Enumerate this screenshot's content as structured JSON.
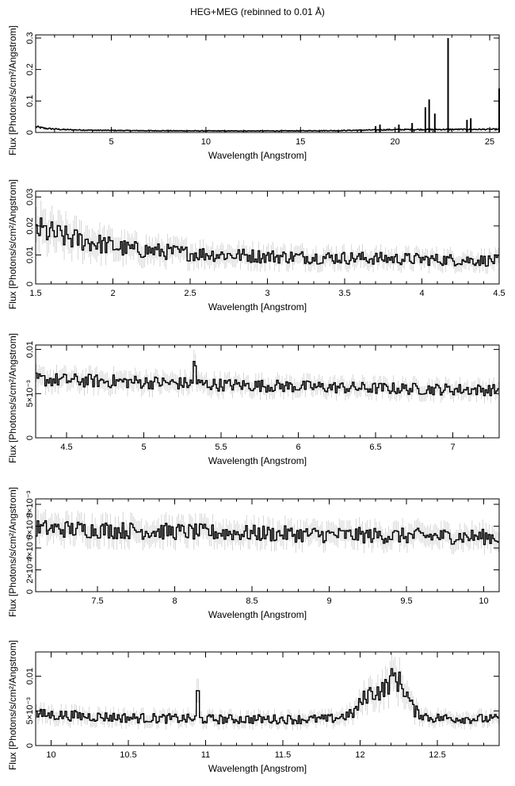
{
  "title": "HEG+MEG (rebinned to 0.01 Å)",
  "chart_data": [
    {
      "type": "line",
      "xlabel": "Wavelength [Angstrom]",
      "ylabel": "Flux [Photons/s/cm²/Angstrom]",
      "xlim": [
        1.0,
        25.5
      ],
      "ylim": [
        0,
        0.31
      ],
      "xticks": [
        {
          "v": 5,
          "label": "5"
        },
        {
          "v": 10,
          "label": "10"
        },
        {
          "v": 15,
          "label": "15"
        },
        {
          "v": 20,
          "label": "20"
        },
        {
          "v": 25,
          "label": "25"
        }
      ],
      "yticks": [
        {
          "v": 0,
          "label": "0"
        },
        {
          "v": 0.1,
          "label": "0.1"
        },
        {
          "v": 0.2,
          "label": "0.2"
        },
        {
          "v": 0.3,
          "label": "0.3"
        }
      ],
      "continuum": [
        [
          1.0,
          0.018
        ],
        [
          1.5,
          0.013
        ],
        [
          2.5,
          0.009
        ],
        [
          4,
          0.007
        ],
        [
          6,
          0.006
        ],
        [
          10,
          0.005
        ],
        [
          14,
          0.005
        ],
        [
          17,
          0.006
        ],
        [
          19,
          0.008
        ],
        [
          20,
          0.009
        ],
        [
          25.5,
          0.01
        ]
      ],
      "lines": [
        [
          17.0,
          0.006
        ],
        [
          18.2,
          0.008
        ],
        [
          18.97,
          0.02
        ],
        [
          19.2,
          0.025
        ],
        [
          20.2,
          0.025
        ],
        [
          20.9,
          0.03
        ],
        [
          21.6,
          0.08
        ],
        [
          21.8,
          0.105
        ],
        [
          22.1,
          0.06
        ],
        [
          22.8,
          0.3
        ],
        [
          23.8,
          0.04
        ],
        [
          24.0,
          0.045
        ],
        [
          25.5,
          0.14
        ]
      ]
    },
    {
      "type": "line",
      "xlabel": "Wavelength [Angstrom]",
      "ylabel": "Flux [Photons/s/cm²/Angstrom]",
      "xlim": [
        1.5,
        4.5
      ],
      "ylim": [
        0,
        0.032
      ],
      "xticks": [
        {
          "v": 1.5,
          "label": "1.5"
        },
        {
          "v": 2,
          "label": "2"
        },
        {
          "v": 2.5,
          "label": "2.5"
        },
        {
          "v": 3,
          "label": "3"
        },
        {
          "v": 3.5,
          "label": "3.5"
        },
        {
          "v": 4,
          "label": "4"
        },
        {
          "v": 4.5,
          "label": "4.5"
        }
      ],
      "yticks": [
        {
          "v": 0,
          "label": "0"
        },
        {
          "v": 0.01,
          "label": "0.01"
        },
        {
          "v": 0.02,
          "label": "0.02"
        },
        {
          "v": 0.03,
          "label": "0.03"
        }
      ],
      "profile": [
        [
          1.5,
          0.019
        ],
        [
          1.7,
          0.016
        ],
        [
          1.9,
          0.014
        ],
        [
          2.1,
          0.012
        ],
        [
          2.5,
          0.0105
        ],
        [
          3.0,
          0.0095
        ],
        [
          3.5,
          0.009
        ],
        [
          4.0,
          0.0085
        ],
        [
          4.5,
          0.008
        ]
      ],
      "noise": 0.25,
      "lines": []
    },
    {
      "type": "line",
      "xlabel": "Wavelength [Angstrom]",
      "ylabel": "Flux [Photons/s/cm²/Angstrom]",
      "xlim": [
        4.3,
        7.3
      ],
      "ylim": [
        0,
        0.0105
      ],
      "xticks": [
        {
          "v": 4.5,
          "label": "4.5"
        },
        {
          "v": 5,
          "label": "5"
        },
        {
          "v": 5.5,
          "label": "5.5"
        },
        {
          "v": 6,
          "label": "6"
        },
        {
          "v": 6.5,
          "label": "6.5"
        },
        {
          "v": 7,
          "label": "7"
        }
      ],
      "yticks": [
        {
          "v": 0,
          "label": "0"
        },
        {
          "v": 0.005,
          "label": "5×10⁻³"
        },
        {
          "v": 0.01,
          "label": "0.01"
        }
      ],
      "profile": [
        [
          4.3,
          0.0066
        ],
        [
          5.0,
          0.0063
        ],
        [
          5.5,
          0.006
        ],
        [
          6.0,
          0.0058
        ],
        [
          6.5,
          0.0056
        ],
        [
          7.3,
          0.0054
        ]
      ],
      "noise": 0.12,
      "lines": [
        [
          5.33,
          0.0085
        ]
      ]
    },
    {
      "type": "line",
      "xlabel": "Wavelength [Angstrom]",
      "ylabel": "Flux [Photons/s/cm²/Angstrom]",
      "xlim": [
        7.1,
        10.1
      ],
      "ylim": [
        0,
        0.0085
      ],
      "xticks": [
        {
          "v": 7.5,
          "label": "7.5"
        },
        {
          "v": 8,
          "label": "8"
        },
        {
          "v": 8.5,
          "label": "8.5"
        },
        {
          "v": 9,
          "label": "9"
        },
        {
          "v": 9.5,
          "label": "9.5"
        },
        {
          "v": 10,
          "label": "10"
        }
      ],
      "yticks": [
        {
          "v": 0,
          "label": "0"
        },
        {
          "v": 0.002,
          "label": "2×10⁻³"
        },
        {
          "v": 0.004,
          "label": "4×10⁻³"
        },
        {
          "v": 0.006,
          "label": "6×10⁻³"
        },
        {
          "v": 0.008,
          "label": "8×10⁻³"
        }
      ],
      "profile": [
        [
          7.1,
          0.0058
        ],
        [
          8.0,
          0.0055
        ],
        [
          9.0,
          0.0052
        ],
        [
          10.1,
          0.005
        ]
      ],
      "noise": 0.14,
      "lines": []
    },
    {
      "type": "line",
      "xlabel": "Wavelength [Angstrom]",
      "ylabel": "Flux [Photons/s/cm²/Angstrom]",
      "xlim": [
        9.9,
        12.9
      ],
      "ylim": [
        0,
        0.0135
      ],
      "xticks": [
        {
          "v": 10,
          "label": "10"
        },
        {
          "v": 10.5,
          "label": "10.5"
        },
        {
          "v": 11,
          "label": "11"
        },
        {
          "v": 11.5,
          "label": "11.5"
        },
        {
          "v": 12,
          "label": "12"
        },
        {
          "v": 12.5,
          "label": "12.5"
        }
      ],
      "yticks": [
        {
          "v": 0,
          "label": "0"
        },
        {
          "v": 0.005,
          "label": "5×10⁻³"
        },
        {
          "v": 0.01,
          "label": "0.01"
        }
      ],
      "profile": [
        [
          9.9,
          0.0045
        ],
        [
          10.5,
          0.004
        ],
        [
          11.0,
          0.0038
        ],
        [
          11.8,
          0.0038
        ],
        [
          11.95,
          0.0045
        ],
        [
          12.05,
          0.0075
        ],
        [
          12.15,
          0.008
        ],
        [
          12.22,
          0.01
        ],
        [
          12.28,
          0.0085
        ],
        [
          12.35,
          0.005
        ],
        [
          12.45,
          0.004
        ],
        [
          12.9,
          0.0038
        ]
      ],
      "noise": 0.18,
      "lines": [
        [
          10.95,
          0.0075
        ]
      ]
    }
  ]
}
